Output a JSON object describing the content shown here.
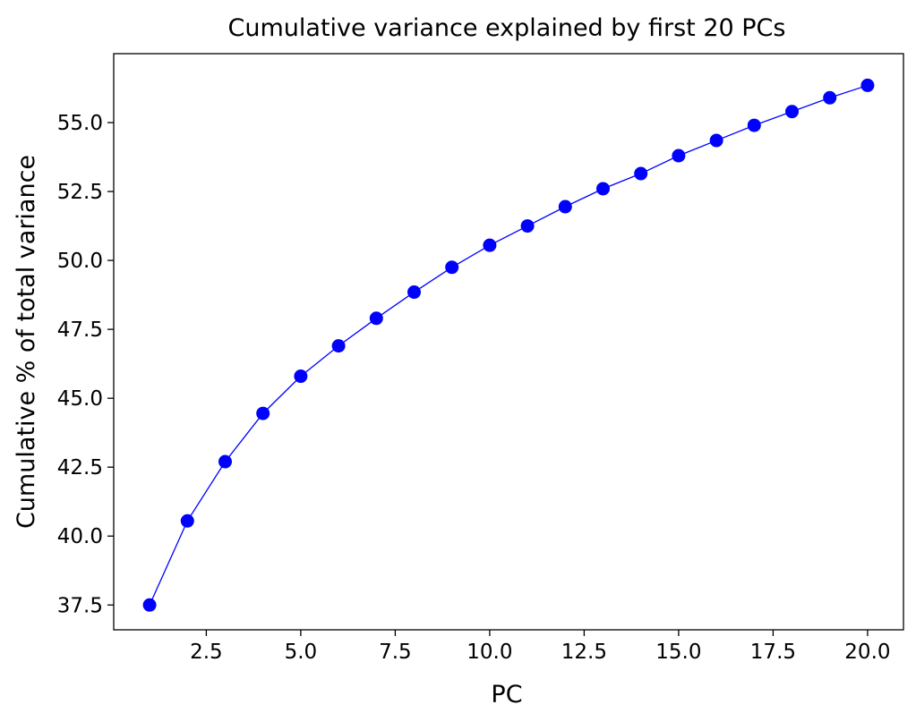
{
  "chart_data": {
    "type": "line",
    "title": "Cumulative variance explained by first 20 PCs",
    "xlabel": "PC",
    "ylabel": "Cumulative % of total variance",
    "xlim": [
      0.05,
      20.95
    ],
    "ylim": [
      36.6,
      57.5
    ],
    "xticks": [
      2.5,
      5.0,
      7.5,
      10.0,
      12.5,
      15.0,
      17.5,
      20.0
    ],
    "xtick_labels": [
      "2.5",
      "5.0",
      "7.5",
      "10.0",
      "12.5",
      "15.0",
      "17.5",
      "20.0"
    ],
    "yticks": [
      37.5,
      40.0,
      42.5,
      45.0,
      47.5,
      50.0,
      52.5,
      55.0
    ],
    "ytick_labels": [
      "37.5",
      "40.0",
      "42.5",
      "45.0",
      "47.5",
      "50.0",
      "52.5",
      "55.0"
    ],
    "grid": false,
    "series": [
      {
        "color": "#0000ff",
        "marker": "circle",
        "x": [
          1,
          2,
          3,
          4,
          5,
          6,
          7,
          8,
          9,
          10,
          11,
          12,
          13,
          14,
          15,
          16,
          17,
          18,
          19,
          20
        ],
        "y": [
          37.5,
          40.55,
          42.7,
          44.45,
          45.8,
          46.9,
          47.9,
          48.85,
          49.75,
          50.55,
          51.25,
          51.95,
          52.6,
          53.15,
          53.8,
          54.35,
          54.9,
          55.4,
          55.9,
          56.35
        ]
      }
    ]
  }
}
